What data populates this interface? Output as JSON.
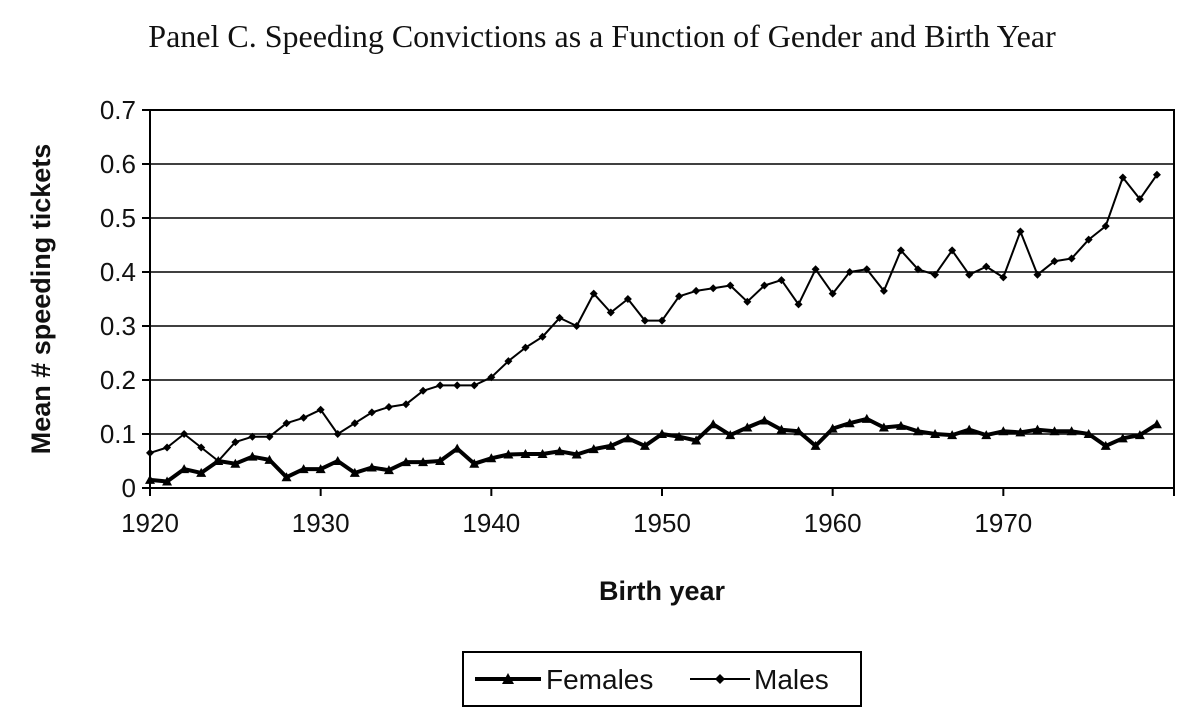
{
  "chart_data": {
    "type": "line",
    "title": "Panel C.  Speeding Convictions as a Function of Gender and Birth Year",
    "xlabel": "Birth year",
    "ylabel": "Mean # speeding tickets",
    "xlim": [
      1920,
      1980
    ],
    "ylim": [
      0,
      0.7
    ],
    "xticks": [
      "1920",
      "1930",
      "1940",
      "1950",
      "1960",
      "1970"
    ],
    "yticks": [
      "0",
      "0.1",
      "0.2",
      "0.3",
      "0.4",
      "0.5",
      "0.6",
      "0.7"
    ],
    "grid": "horizontal",
    "legend_position": "bottom-center",
    "series": [
      {
        "name": "Females",
        "marker": "triangle",
        "x": [
          1920,
          1921,
          1922,
          1923,
          1924,
          1925,
          1926,
          1927,
          1928,
          1929,
          1930,
          1931,
          1932,
          1933,
          1934,
          1935,
          1936,
          1937,
          1938,
          1939,
          1940,
          1941,
          1942,
          1943,
          1944,
          1945,
          1946,
          1947,
          1948,
          1949,
          1950,
          1951,
          1952,
          1953,
          1954,
          1955,
          1956,
          1957,
          1958,
          1959,
          1960,
          1961,
          1962,
          1963,
          1964,
          1965,
          1966,
          1967,
          1968,
          1969,
          1970,
          1971,
          1972,
          1973,
          1974,
          1975,
          1976,
          1977,
          1978,
          1979
        ],
        "values": [
          0.015,
          0.012,
          0.035,
          0.028,
          0.05,
          0.045,
          0.058,
          0.052,
          0.02,
          0.035,
          0.035,
          0.05,
          0.028,
          0.038,
          0.033,
          0.048,
          0.048,
          0.05,
          0.073,
          0.045,
          0.055,
          0.062,
          0.063,
          0.063,
          0.068,
          0.062,
          0.072,
          0.078,
          0.092,
          0.078,
          0.1,
          0.095,
          0.088,
          0.118,
          0.098,
          0.112,
          0.125,
          0.108,
          0.105,
          0.078,
          0.11,
          0.12,
          0.128,
          0.112,
          0.115,
          0.105,
          0.1,
          0.098,
          0.108,
          0.098,
          0.105,
          0.103,
          0.108,
          0.105,
          0.105,
          0.1,
          0.078,
          0.092,
          0.098,
          0.118
        ]
      },
      {
        "name": "Males",
        "marker": "diamond",
        "x": [
          1920,
          1921,
          1922,
          1923,
          1924,
          1925,
          1926,
          1927,
          1928,
          1929,
          1930,
          1931,
          1932,
          1933,
          1934,
          1935,
          1936,
          1937,
          1938,
          1939,
          1940,
          1941,
          1942,
          1943,
          1944,
          1945,
          1946,
          1947,
          1948,
          1949,
          1950,
          1951,
          1952,
          1953,
          1954,
          1955,
          1956,
          1957,
          1958,
          1959,
          1960,
          1961,
          1962,
          1963,
          1964,
          1965,
          1966,
          1967,
          1968,
          1969,
          1970,
          1971,
          1972,
          1973,
          1974,
          1975,
          1976,
          1977,
          1978,
          1979
        ],
        "values": [
          0.065,
          0.075,
          0.1,
          0.075,
          0.05,
          0.085,
          0.095,
          0.095,
          0.12,
          0.13,
          0.145,
          0.1,
          0.12,
          0.14,
          0.15,
          0.155,
          0.18,
          0.19,
          0.19,
          0.19,
          0.205,
          0.235,
          0.26,
          0.28,
          0.315,
          0.3,
          0.36,
          0.325,
          0.35,
          0.31,
          0.31,
          0.355,
          0.365,
          0.37,
          0.375,
          0.345,
          0.375,
          0.385,
          0.34,
          0.405,
          0.36,
          0.4,
          0.405,
          0.365,
          0.44,
          0.405,
          0.395,
          0.44,
          0.395,
          0.41,
          0.39,
          0.475,
          0.395,
          0.42,
          0.425,
          0.46,
          0.485,
          0.575,
          0.535,
          0.58
        ]
      }
    ]
  }
}
